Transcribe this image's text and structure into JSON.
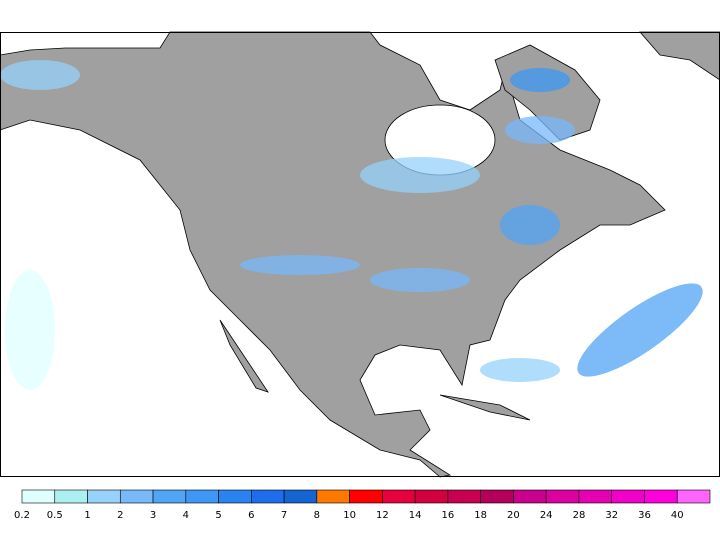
{
  "legend": {
    "labels": [
      "0.2",
      "0.5",
      "1",
      "2",
      "3",
      "4",
      "5",
      "6",
      "7",
      "8",
      "10",
      "12",
      "14",
      "16",
      "18",
      "20",
      "24",
      "28",
      "32",
      "36",
      "40"
    ],
    "colors": [
      "#e0ffff",
      "#aaf0f0",
      "#96d2fa",
      "#78b9fa",
      "#50a5f5",
      "#3c97f5",
      "#2883f0",
      "#1e6eeb",
      "#1464d2",
      "#ff7800",
      "#ff0000",
      "#e6003c",
      "#d2003c",
      "#c80050",
      "#b4005a",
      "#c8008c",
      "#dc00a0",
      "#e600b4",
      "#f000c8",
      "#ff00dc",
      "#ff64ff"
    ]
  }
}
